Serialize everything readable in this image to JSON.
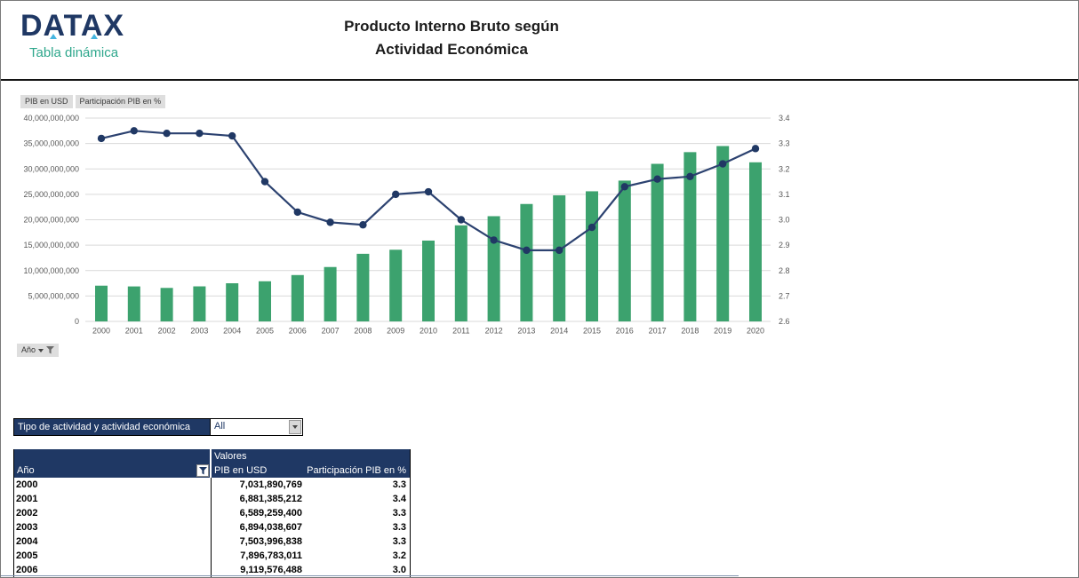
{
  "header": {
    "logo_title": "DATAX",
    "logo_subtitle": "Tabla dinámica",
    "title_line1": "Producto Interno Bruto según",
    "title_line2": "Actividad Económica"
  },
  "legend": {
    "series1_label": "PIB en USD",
    "series2_label": "Participación PIB en %"
  },
  "chart_field": {
    "label": "Año"
  },
  "chart_data": {
    "type": "bar+line combo",
    "categories": [
      "2000",
      "2001",
      "2002",
      "2003",
      "2004",
      "2005",
      "2006",
      "2007",
      "2008",
      "2009",
      "2010",
      "2011",
      "2012",
      "2013",
      "2014",
      "2015",
      "2016",
      "2017",
      "2018",
      "2019",
      "2020"
    ],
    "series": [
      {
        "name": "PIB en USD",
        "type": "bar",
        "axis": "left",
        "color": "#3CA26E",
        "values": [
          7031890769,
          6881385212,
          6589259400,
          6894038607,
          7503996838,
          7896783011,
          9119576488,
          10700000000,
          13300000000,
          14100000000,
          15900000000,
          18900000000,
          20700000000,
          23100000000,
          24800000000,
          25600000000,
          27700000000,
          31000000000,
          33300000000,
          34500000000,
          31300000000
        ]
      },
      {
        "name": "Participación PIB en %",
        "type": "line",
        "axis": "right",
        "color": "#2C4270",
        "values": [
          3.32,
          3.35,
          3.34,
          3.34,
          3.33,
          3.15,
          3.03,
          2.99,
          2.98,
          3.1,
          3.11,
          3.0,
          2.92,
          2.88,
          2.88,
          2.97,
          3.13,
          3.16,
          3.17,
          3.22,
          3.28
        ]
      }
    ],
    "left_axis": {
      "min": 0,
      "max": 40000000000,
      "step": 5000000000
    },
    "right_axis": {
      "min": 2.6,
      "max": 3.4,
      "step": 0.1
    },
    "left_axis_labels": [
      "40,000,000,000",
      "35,000,000,000",
      "30,000,000,000",
      "25,000,000,000",
      "20,000,000,000",
      "15,000,000,000",
      "10,000,000,000",
      "5,000,000,000",
      "0"
    ],
    "right_axis_labels": [
      "3.4",
      "3.3",
      "3.2",
      "3.1",
      "3.0",
      "2.9",
      "2.8",
      "2.7",
      "2.6"
    ],
    "grid": true,
    "legend_position": "top-left",
    "title": ""
  },
  "filter": {
    "label": "Tipo de actividad y actividad económica",
    "value": "All"
  },
  "table": {
    "col1_header": "Año",
    "group_header": "Valores",
    "col2_header": "PIB en USD",
    "col3_header": "Participación PIB en %",
    "rows": [
      {
        "year": "2000",
        "pib": "7,031,890,769",
        "part": "3.3"
      },
      {
        "year": "2001",
        "pib": "6,881,385,212",
        "part": "3.4"
      },
      {
        "year": "2002",
        "pib": "6,589,259,400",
        "part": "3.3"
      },
      {
        "year": "2003",
        "pib": "6,894,038,607",
        "part": "3.3"
      },
      {
        "year": "2004",
        "pib": "7,503,996,838",
        "part": "3.3"
      },
      {
        "year": "2005",
        "pib": "7,896,783,011",
        "part": "3.2"
      },
      {
        "year": "2006",
        "pib": "9,119,576,488",
        "part": "3.0"
      }
    ]
  },
  "colors": {
    "navy": "#1F3864",
    "bar_green": "#3CA26E",
    "line_navy": "#2C4270",
    "dot_navy": "#203864",
    "logo_teal": "#2EA78C",
    "logo_cyan": "#45B5E0",
    "gridline": "#D9D9D9",
    "axis_text": "#595959"
  }
}
